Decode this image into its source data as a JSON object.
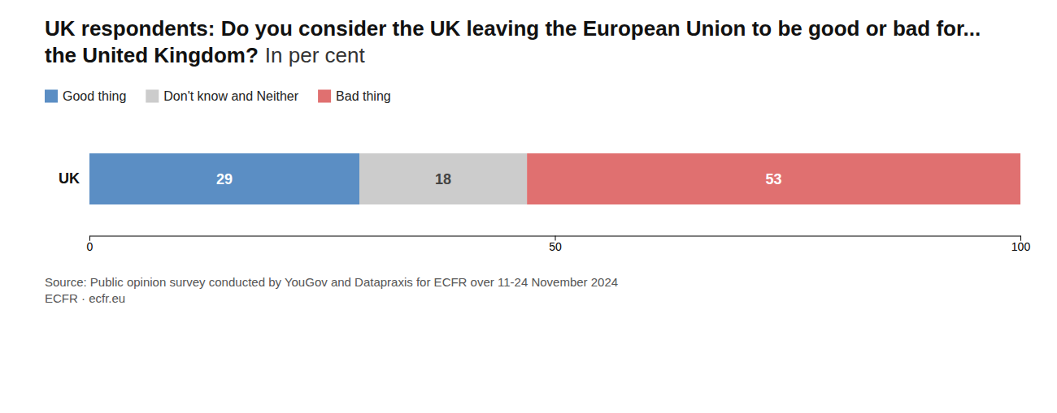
{
  "chart_data": {
    "type": "bar",
    "orientation": "horizontal",
    "stacked": true,
    "title": "UK respondents: Do you consider the UK leaving the European Union to be good or bad for... the United Kingdom?",
    "subtitle": "In per cent",
    "categories": [
      "UK"
    ],
    "series": [
      {
        "name": "Good thing",
        "color": "#5b8ec4",
        "values": [
          29
        ]
      },
      {
        "name": "Don't know and Neither",
        "color": "#cccccc",
        "values": [
          18
        ]
      },
      {
        "name": "Bad thing",
        "color": "#e07070",
        "values": [
          53
        ]
      }
    ],
    "xlim": [
      0,
      100
    ],
    "xticks": [
      0,
      50,
      100
    ],
    "grid": false,
    "legend": "top-left",
    "data_labels": true,
    "annotations": [
      "Source: Public opinion survey conducted by YouGov and Datapraxis for ECFR over 11-24 November 2024\nECFR · ecfr.eu"
    ]
  }
}
